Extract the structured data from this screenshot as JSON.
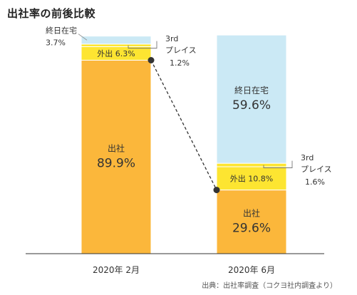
{
  "title": "出社率の前後比較",
  "source": "出典：出社率調査（コクヨ社内調査より）",
  "colors": {
    "office": "#fbb73b",
    "outing": "#fde531",
    "third_place": "#fde531",
    "home": "#cbe9f5",
    "connector": "#333333",
    "axis": "#333333"
  },
  "chart_data": {
    "type": "bar",
    "stacked": true,
    "percent": true,
    "categories": [
      "2020年 2月",
      "2020年 6月"
    ],
    "ylim": [
      0,
      100
    ],
    "series": [
      {
        "key": "office",
        "name": "出社",
        "values": [
          89.9,
          29.6
        ]
      },
      {
        "key": "outing",
        "name": "外出",
        "values": [
          6.3,
          10.8
        ]
      },
      {
        "key": "third_place",
        "name": "3rd\nプレイス",
        "values": [
          1.2,
          1.6
        ]
      },
      {
        "key": "home",
        "name": "終日在宅",
        "values": [
          3.7,
          59.6
        ]
      }
    ],
    "labels": [
      {
        "bar": 0,
        "key": "office",
        "name": "出社",
        "value": "89.9%",
        "placement": "inside"
      },
      {
        "bar": 0,
        "key": "outing",
        "name": "外出",
        "value": "6.3%",
        "placement": "inline"
      },
      {
        "bar": 0,
        "key": "third_place",
        "lines": [
          "3rd",
          "プレイス"
        ],
        "value": "1.2%",
        "placement": "outside-right"
      },
      {
        "bar": 0,
        "key": "home",
        "name": "終日在宅",
        "value": "3.7%",
        "placement": "outside-left"
      },
      {
        "bar": 1,
        "key": "office",
        "name": "出社",
        "value": "29.6%",
        "placement": "inside"
      },
      {
        "bar": 1,
        "key": "outing",
        "name": "外出",
        "value": "10.8%",
        "placement": "inline"
      },
      {
        "bar": 1,
        "key": "third_place",
        "lines": [
          "3rd",
          "プレイス"
        ],
        "value": "1.6%",
        "placement": "outside-right"
      },
      {
        "bar": 1,
        "key": "home",
        "name": "終日在宅",
        "value": "59.6%",
        "placement": "inside"
      }
    ],
    "connector": {
      "from_bar": 0,
      "to_bar": 1,
      "series": "office",
      "style": "dashed"
    }
  }
}
